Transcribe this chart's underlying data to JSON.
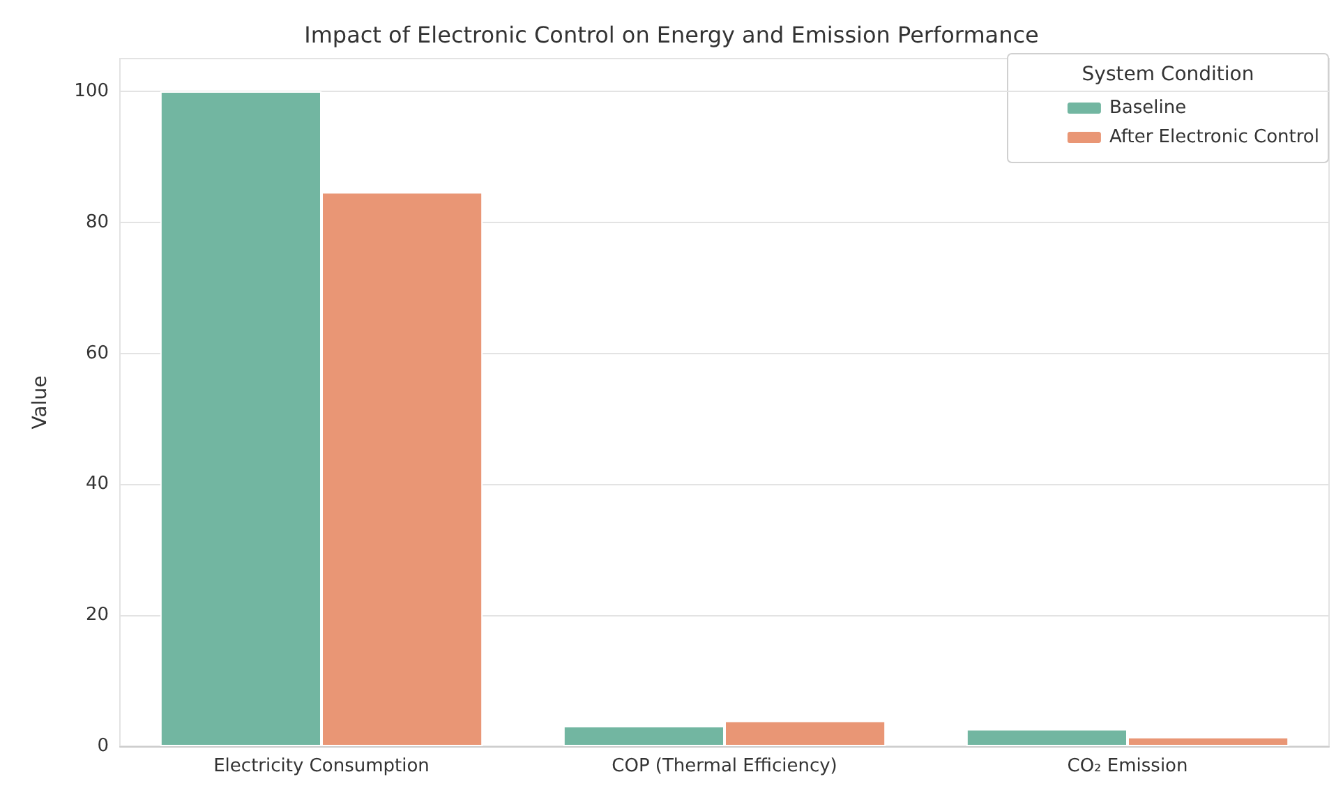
{
  "chart_data": {
    "type": "bar",
    "title": "Impact of Electronic Control on Energy and Emission Performance",
    "ylabel": "Value",
    "legend_title": "System Condition",
    "categories": [
      "Electricity Consumption",
      "COP (Thermal Efficiency)",
      "CO₂ Emission"
    ],
    "series": [
      {
        "name": "Baseline",
        "color": "#72b6a1",
        "values": [
          100,
          3.1,
          2.6
        ]
      },
      {
        "name": "After Electronic Control",
        "color": "#e99675",
        "values": [
          84.6,
          3.9,
          1.4
        ]
      }
    ],
    "ylim": [
      0,
      105
    ],
    "yticks": [
      0,
      20,
      40,
      60,
      80,
      100
    ],
    "grid": "y",
    "legend": "top right"
  }
}
